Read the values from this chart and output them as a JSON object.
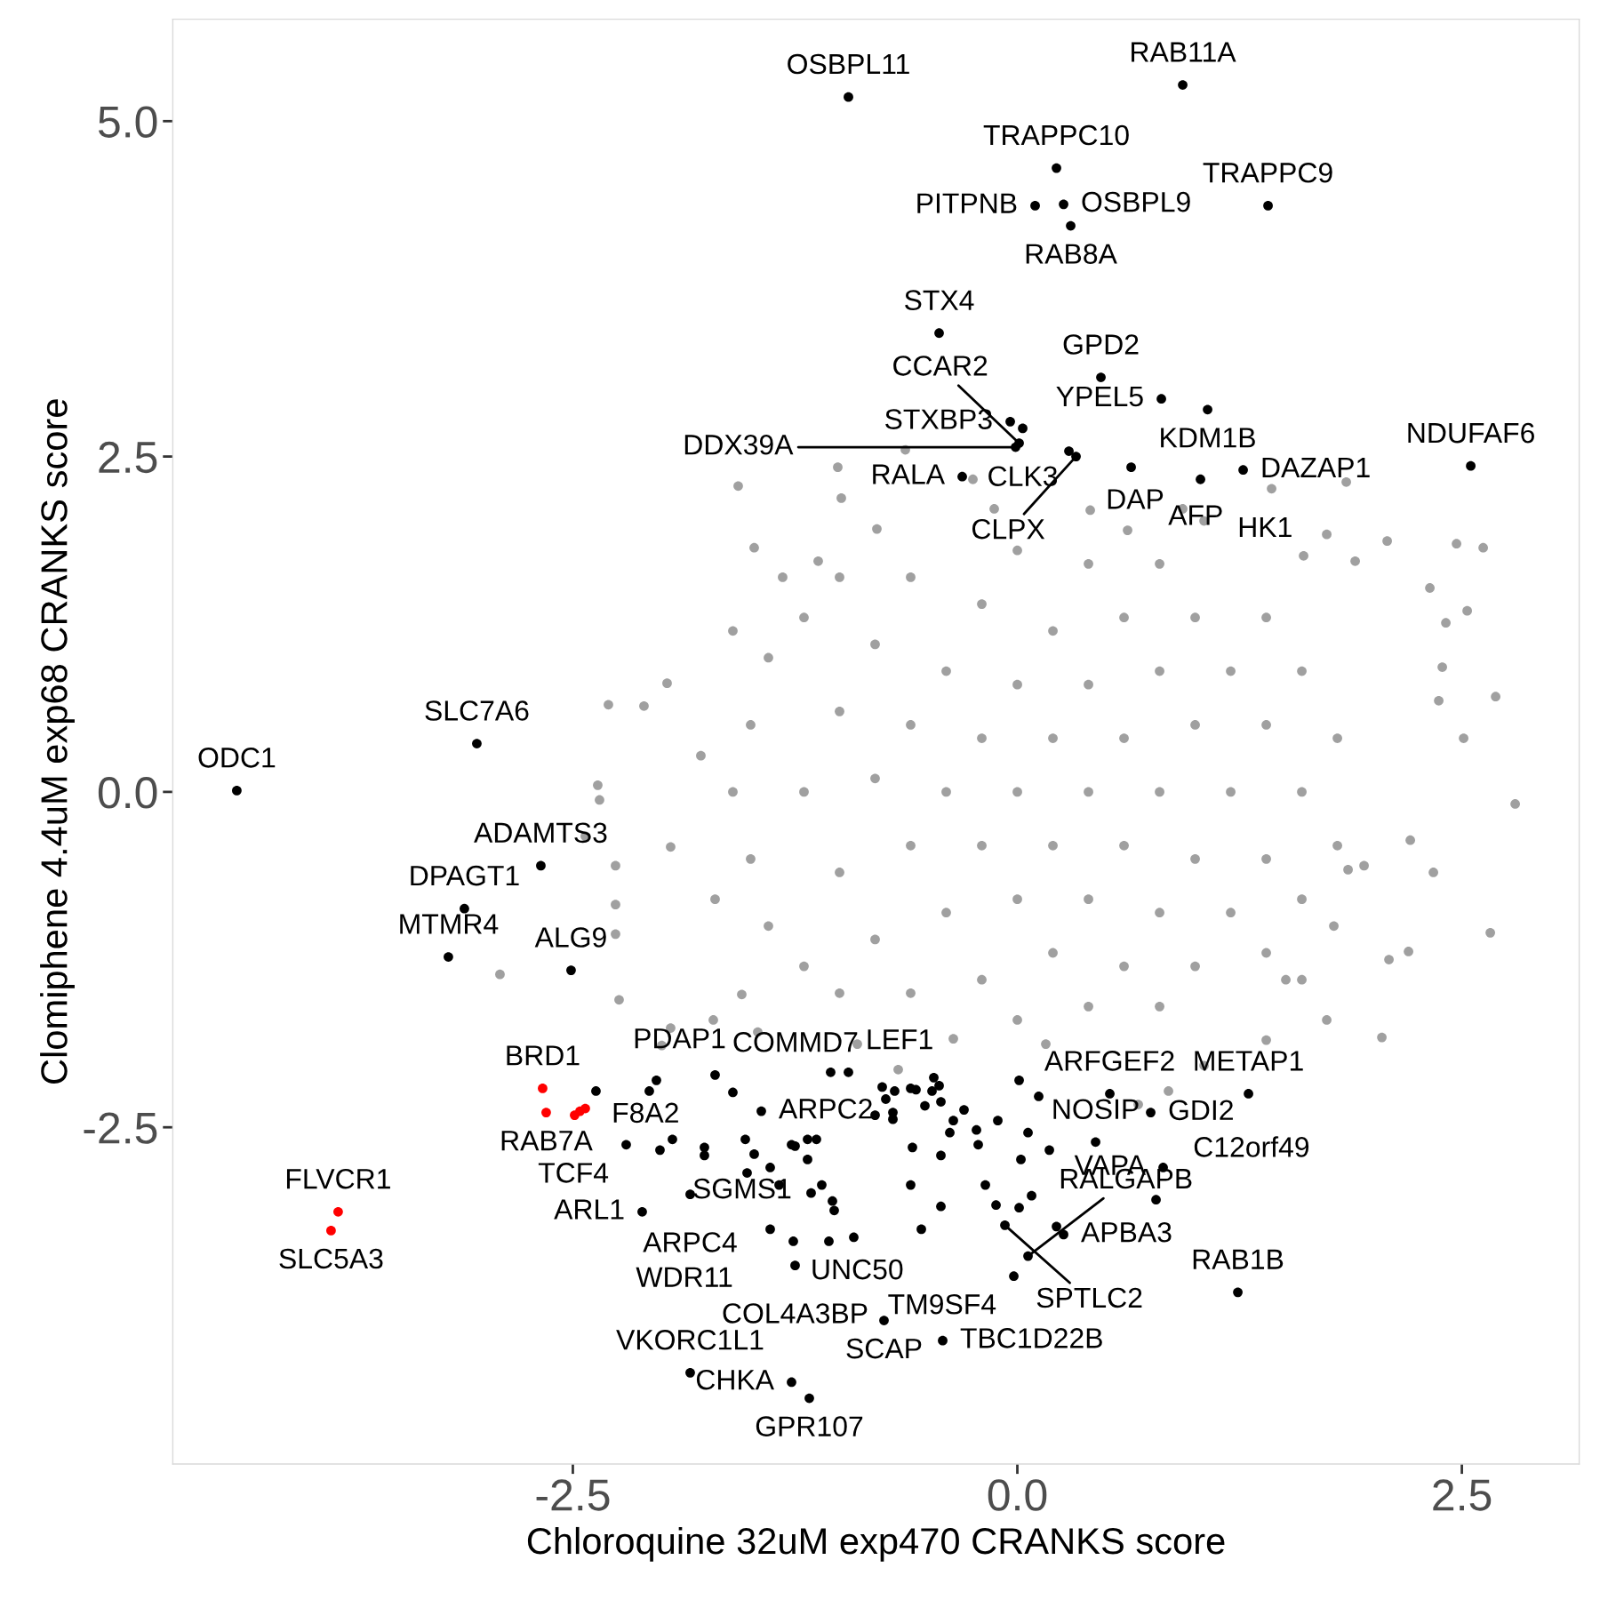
{
  "chart_data": {
    "type": "scatter",
    "xlabel": "Chloroquine 32uM exp470 CRANKS score",
    "ylabel": "Clomiphene 4.4uM exp68 CRANKS score",
    "xlim": [
      -4.75,
      3.16
    ],
    "ylim": [
      -5.01,
      5.76
    ],
    "xticks": [
      {
        "value": -2.5,
        "label": "-2.5"
      },
      {
        "value": 0,
        "label": "0.0"
      },
      {
        "value": 2.5,
        "label": "2.5"
      }
    ],
    "yticks": [
      {
        "value": -2.5,
        "label": "-2.5"
      },
      {
        "value": 0,
        "label": "0.0"
      },
      {
        "value": 2.5,
        "label": "2.5"
      },
      {
        "value": 5,
        "label": "5.0"
      }
    ],
    "grid": false,
    "marker": "circle",
    "series": [
      {
        "color": "#a0a0a0",
        "x": [
          2.8,
          2.69,
          2.62,
          2.47,
          2.66,
          2.53,
          2.37,
          2.39,
          2.32,
          2.21,
          2.2,
          2.08,
          2.05,
          1.95,
          1.85,
          1.74,
          1.61,
          1.6,
          1.78,
          1.9,
          1.43,
          2.41,
          2.51,
          2.34,
          2.09,
          1.86,
          -1.97,
          -2.1,
          -2.3,
          -2.36,
          -2.35,
          -2.43,
          -2.26,
          -2.26,
          -2.26,
          -2.24,
          -2.91,
          -1.95,
          -1.78,
          -2.0,
          -1.95,
          -1.71,
          -1.55,
          -1.57,
          -1.01,
          -0.99,
          -0.63,
          -1.48,
          -1.32,
          -1.12,
          -0.79,
          -0.25,
          -0.13,
          0.41,
          0.93,
          0.62,
          1.05,
          -1.46,
          -0.9,
          -0.67,
          -0.36,
          0.16,
          0.68,
          0.85,
          1.05,
          1.4,
          1.74,
          1.51,
          -1.5,
          -1.5,
          -1.4,
          -1.4,
          -1.2,
          -1.2,
          -1.2,
          -1.0,
          -1.0,
          -1.0,
          -1.0,
          -0.8,
          -0.8,
          -0.8,
          -0.6,
          -0.6,
          -0.6,
          -0.6,
          -0.4,
          -0.4,
          -0.4,
          -0.2,
          -0.2,
          -0.2,
          -0.2,
          0.0,
          0.0,
          0.0,
          0.0,
          0.0,
          0.2,
          0.2,
          0.2,
          0.2,
          0.4,
          0.4,
          0.4,
          0.4,
          0.4,
          0.6,
          0.6,
          0.6,
          0.6,
          0.8,
          0.8,
          0.8,
          0.8,
          0.8,
          1.0,
          1.0,
          1.0,
          1.0,
          1.2,
          1.2,
          1.2,
          1.4,
          1.4,
          1.4,
          1.4,
          1.6,
          1.6,
          1.6,
          1.8,
          1.8,
          -1.6,
          -1.7,
          -1.6
        ],
        "values": [
          -0.09,
          0.71,
          1.82,
          1.85,
          -1.05,
          1.35,
          0.68,
          0.93,
          1.52,
          -0.36,
          -1.19,
          1.87,
          -1.83,
          -0.55,
          2.31,
          1.92,
          1.76,
          -1.4,
          -1.0,
          1.72,
          2.26,
          1.26,
          0.4,
          -0.6,
          -1.25,
          -0.58,
          0.81,
          0.64,
          0.65,
          0.05,
          -0.06,
          -0.33,
          -0.55,
          -0.84,
          -1.06,
          -1.55,
          -1.36,
          -0.41,
          0.27,
          -1.89,
          -1.76,
          -1.7,
          -1.51,
          2.28,
          2.42,
          2.19,
          2.55,
          1.82,
          1.6,
          1.72,
          1.96,
          2.33,
          2.11,
          2.1,
          2.11,
          1.95,
          2.02,
          -1.79,
          -1.88,
          -2.07,
          -1.84,
          -1.88,
          -2.33,
          -2.23,
          -2.04,
          -1.85,
          -1.7,
          -1.4,
          0.5,
          -0.5,
          1.0,
          -1.0,
          0.0,
          1.3,
          -1.3,
          0.6,
          -0.6,
          1.6,
          -1.5,
          0.1,
          1.1,
          -1.1,
          0.5,
          -0.4,
          1.6,
          -1.5,
          0.0,
          0.9,
          -0.9,
          0.4,
          -0.4,
          1.4,
          -1.4,
          0.0,
          0.8,
          -0.8,
          1.8,
          -1.7,
          0.4,
          -0.4,
          1.2,
          -1.2,
          0.0,
          0.8,
          -0.8,
          1.7,
          -1.6,
          0.4,
          -0.4,
          1.3,
          -1.3,
          0.0,
          0.9,
          -0.9,
          1.7,
          -1.6,
          0.5,
          -0.5,
          1.3,
          -1.3,
          0.0,
          0.9,
          -0.9,
          0.5,
          -0.5,
          1.3,
          -1.2,
          0.0,
          0.9,
          -0.8,
          0.4,
          -0.4,
          0.0,
          -0.8,
          1.2
        ]
      },
      {
        "color": "#000000",
        "x": [
          -0.95,
          0.93,
          0.22,
          0.1,
          0.26,
          0.3,
          1.41,
          -0.44,
          0.47,
          0.81,
          1.07,
          -0.04,
          0.03,
          -0.01,
          0.01,
          0.29,
          0.33,
          -0.31,
          0.64,
          1.03,
          1.27,
          2.55,
          -3.04,
          -4.39,
          -2.68,
          -3.11,
          -3.2,
          -2.51,
          -2.37,
          -1.7,
          -1.44,
          -2.2,
          -1.84,
          -2.11,
          -1.39,
          -1.26,
          -1.25,
          -1.06,
          -1.84,
          -1.27,
          -1.17,
          -0.75,
          -0.42,
          -0.07,
          0.06,
          -0.02,
          0.26,
          0.78,
          0.82,
          0.44,
          0.75,
          1.3,
          0.52,
          1.24,
          -0.95,
          -2.03,
          -2.07,
          -1.6,
          -2.01,
          -1.94,
          -1.76,
          -1.76,
          -1.53,
          -1.48,
          -1.25,
          -1.52,
          -1.39,
          -1.34,
          -1.05,
          -0.76,
          -0.69,
          -0.74,
          -0.6,
          -0.57,
          -0.47,
          -0.44,
          -0.48,
          -0.8,
          -0.7,
          -0.7,
          -0.52,
          -0.43,
          -0.36,
          -0.3,
          -0.38,
          -0.23,
          -0.22,
          -0.11,
          0.01,
          0.12,
          0.06,
          0.18,
          0.02,
          0.22,
          0.08,
          0.01,
          -0.12,
          -0.18,
          -0.43,
          -0.59,
          -0.6,
          -0.43,
          -0.54,
          -1.27,
          -1.18,
          -1.13,
          -1.18,
          -1.16,
          -1.1,
          -1.04,
          -1.03,
          -0.92
        ],
        "values": [
          5.18,
          5.27,
          4.65,
          4.37,
          4.38,
          4.22,
          4.37,
          3.42,
          3.09,
          2.93,
          2.85,
          2.76,
          2.71,
          2.57,
          2.6,
          2.54,
          2.5,
          2.35,
          2.42,
          2.33,
          2.4,
          2.43,
          0.36,
          0.01,
          -0.55,
          -0.87,
          -1.23,
          -1.33,
          -2.23,
          -2.11,
          -2.38,
          -2.63,
          -3.0,
          -3.13,
          -3.26,
          -3.35,
          -3.53,
          -3.35,
          -4.33,
          -4.4,
          -4.52,
          -3.94,
          -4.09,
          -3.23,
          -3.46,
          -3.61,
          -3.3,
          -3.04,
          -2.8,
          -2.61,
          -2.39,
          -2.25,
          -2.25,
          -3.73,
          -2.09,
          -2.15,
          -2.23,
          -2.24,
          -2.67,
          -2.59,
          -2.65,
          -2.71,
          -2.59,
          -2.7,
          -2.64,
          -2.84,
          -2.8,
          -2.93,
          -2.09,
          -2.2,
          -2.23,
          -2.29,
          -2.21,
          -2.22,
          -2.13,
          -2.19,
          -2.23,
          -2.41,
          -2.39,
          -2.44,
          -2.34,
          -2.31,
          -2.45,
          -2.37,
          -2.54,
          -2.52,
          -2.63,
          -2.45,
          -2.15,
          -2.27,
          -2.54,
          -2.67,
          -2.74,
          -3.24,
          -3.01,
          -3.1,
          -3.08,
          -2.93,
          -2.71,
          -2.65,
          -2.93,
          -3.09,
          -3.26,
          -2.63,
          -2.59,
          -2.59,
          -2.74,
          -2.99,
          -2.93,
          -3.05,
          -3.12,
          -3.32
        ]
      },
      {
        "color": "#ff0000",
        "x": [
          -2.67,
          -2.65,
          -2.49,
          -2.46,
          -2.43,
          -3.82,
          -3.86
        ],
        "values": [
          -2.21,
          -2.39,
          -2.41,
          -2.38,
          -2.36,
          -3.13,
          -3.27
        ]
      }
    ],
    "annotations": [
      {
        "text": "OSBPL11",
        "x": -0.95,
        "y": 5.18
      },
      {
        "text": "RAB11A",
        "x": 0.93,
        "y": 5.27
      },
      {
        "text": "TRAPPC10",
        "x": 0.22,
        "y": 4.65
      },
      {
        "text": "PITPNB",
        "x": 0.1,
        "y": 4.37
      },
      {
        "text": "OSBPL9",
        "x": 0.26,
        "y": 4.38
      },
      {
        "text": "RAB8A",
        "x": 0.3,
        "y": 4.22
      },
      {
        "text": "TRAPPC9",
        "x": 1.41,
        "y": 4.37
      },
      {
        "text": "STX4",
        "x": -0.44,
        "y": 3.42
      },
      {
        "text": "GPD2",
        "x": 0.47,
        "y": 3.09
      },
      {
        "text": "YPEL5",
        "x": 0.81,
        "y": 2.93
      },
      {
        "text": "KDM1B",
        "x": 1.07,
        "y": 2.85
      },
      {
        "text": "STXBP3",
        "x": -0.04,
        "y": 2.76
      },
      {
        "text": "CLK3",
        "x": 0.03,
        "y": 2.71
      },
      {
        "text": "DDX39A",
        "x": -0.01,
        "y": 2.57
      },
      {
        "text": "CCAR2",
        "x": 0.01,
        "y": 2.6
      },
      {
        "text": "DAP",
        "x": 0.29,
        "y": 2.54
      },
      {
        "text": "CLPX",
        "x": 0.33,
        "y": 2.5
      },
      {
        "text": "RALA",
        "x": -0.31,
        "y": 2.35
      },
      {
        "text": "AFP",
        "x": 0.64,
        "y": 2.42
      },
      {
        "text": "HK1",
        "x": 1.03,
        "y": 2.33
      },
      {
        "text": "DAZAP1",
        "x": 1.27,
        "y": 2.4
      },
      {
        "text": "NDUFAF6",
        "x": 2.55,
        "y": 2.43
      },
      {
        "text": "SLC7A6",
        "x": -3.04,
        "y": 0.36
      },
      {
        "text": "ODC1",
        "x": -4.39,
        "y": 0.01
      },
      {
        "text": "ADAMTS3",
        "x": -2.68,
        "y": -0.55
      },
      {
        "text": "DPAGT1",
        "x": -3.11,
        "y": -0.87
      },
      {
        "text": "MTMR4",
        "x": -3.2,
        "y": -1.23
      },
      {
        "text": "ALG9",
        "x": -2.51,
        "y": -1.33
      },
      {
        "text": "BRD1",
        "x": -2.67,
        "y": -2.21
      },
      {
        "text": "RAB7A",
        "x": -2.65,
        "y": -2.39
      },
      {
        "text": "F8A2",
        "x": -2.49,
        "y": -2.41
      },
      {
        "text": "FLVCR1",
        "x": -3.82,
        "y": -3.13
      },
      {
        "text": "SLC5A3",
        "x": -3.86,
        "y": -3.27
      },
      {
        "text": "PDAP1",
        "x": -2.37,
        "y": -2.23
      },
      {
        "text": "COMMD7",
        "x": -1.7,
        "y": -2.11
      },
      {
        "text": "LEF1",
        "x": -0.95,
        "y": -2.09
      },
      {
        "text": "ARPC2",
        "x": -1.44,
        "y": -2.38
      },
      {
        "text": "TCF4",
        "x": -2.2,
        "y": -2.63
      },
      {
        "text": "ARPC4",
        "x": -1.84,
        "y": -3.0
      },
      {
        "text": "ARL1",
        "x": -2.11,
        "y": -3.13
      },
      {
        "text": "WDR11",
        "x": -1.39,
        "y": -3.26
      },
      {
        "text": "UNC50",
        "x": -1.26,
        "y": -3.35
      },
      {
        "text": "SGMS1",
        "x": -1.06,
        "y": -3.35
      },
      {
        "text": "COL4A3BP",
        "x": -1.25,
        "y": -3.53
      },
      {
        "text": "VKORC1L1",
        "x": -1.84,
        "y": -4.33
      },
      {
        "text": "CHKA",
        "x": -1.27,
        "y": -4.4
      },
      {
        "text": "GPR107",
        "x": -1.17,
        "y": -4.52
      },
      {
        "text": "SCAP",
        "x": -0.75,
        "y": -3.94
      },
      {
        "text": "TBC1D22B",
        "x": -0.42,
        "y": -4.09
      },
      {
        "text": "SPTLC2",
        "x": -0.07,
        "y": -3.23
      },
      {
        "text": "RALGAPB",
        "x": 0.06,
        "y": -3.46
      },
      {
        "text": "TM9SF4",
        "x": -0.02,
        "y": -3.61
      },
      {
        "text": "APBA3",
        "x": 0.26,
        "y": -3.3
      },
      {
        "text": "C12orf49",
        "x": 0.78,
        "y": -3.04
      },
      {
        "text": "VAPA",
        "x": 0.82,
        "y": -2.8
      },
      {
        "text": "NOSIP",
        "x": 0.44,
        "y": -2.61
      },
      {
        "text": "GDI2",
        "x": 0.75,
        "y": -2.39
      },
      {
        "text": "METAP1",
        "x": 1.3,
        "y": -2.25
      },
      {
        "text": "ARFGEF2",
        "x": 0.52,
        "y": -2.25
      },
      {
        "text": "RAB1B",
        "x": 1.24,
        "y": -3.73
      }
    ]
  }
}
